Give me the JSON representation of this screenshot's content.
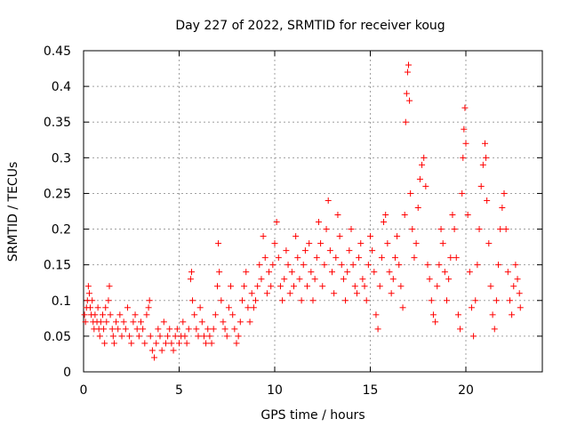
{
  "chart_data": {
    "type": "scatter",
    "title": "Day 227 of 2022, SRMTID for receiver koug",
    "xlabel": "GPS time / hours",
    "ylabel": "SRMTID / TECUs",
    "xlim": [
      0,
      24
    ],
    "ylim": [
      0,
      0.45
    ],
    "xticks": [
      0,
      5,
      10,
      15,
      20
    ],
    "yticks": [
      0,
      0.05,
      0.1,
      0.15,
      0.2,
      0.25,
      0.3,
      0.35,
      0.4,
      0.45
    ],
    "xtick_labels": [
      "0",
      "5",
      "10",
      "15",
      "20"
    ],
    "ytick_labels": [
      "0",
      "0.05",
      "0.1",
      "0.15",
      "0.2",
      "0.25",
      "0.3",
      "0.35",
      "0.4",
      "0.45"
    ],
    "grid": true,
    "marker": "+",
    "color": "#ff0000",
    "series": [
      {
        "name": "koug",
        "points": [
          [
            0.05,
            0.08
          ],
          [
            0.1,
            0.07
          ],
          [
            0.15,
            0.09
          ],
          [
            0.2,
            0.1
          ],
          [
            0.25,
            0.12
          ],
          [
            0.3,
            0.11
          ],
          [
            0.35,
            0.09
          ],
          [
            0.4,
            0.08
          ],
          [
            0.45,
            0.1
          ],
          [
            0.5,
            0.07
          ],
          [
            0.55,
            0.06
          ],
          [
            0.6,
            0.08
          ],
          [
            0.7,
            0.07
          ],
          [
            0.75,
            0.09
          ],
          [
            0.8,
            0.06
          ],
          [
            0.85,
            0.05
          ],
          [
            0.9,
            0.07
          ],
          [
            1.0,
            0.08
          ],
          [
            1.05,
            0.06
          ],
          [
            1.1,
            0.04
          ],
          [
            1.15,
            0.09
          ],
          [
            1.2,
            0.07
          ],
          [
            1.3,
            0.1
          ],
          [
            1.35,
            0.12
          ],
          [
            1.4,
            0.08
          ],
          [
            1.5,
            0.06
          ],
          [
            1.55,
            0.05
          ],
          [
            1.6,
            0.04
          ],
          [
            1.7,
            0.07
          ],
          [
            1.8,
            0.06
          ],
          [
            1.9,
            0.08
          ],
          [
            2.0,
            0.05
          ],
          [
            2.1,
            0.07
          ],
          [
            2.2,
            0.06
          ],
          [
            2.3,
            0.09
          ],
          [
            2.4,
            0.05
          ],
          [
            2.5,
            0.04
          ],
          [
            2.6,
            0.07
          ],
          [
            2.7,
            0.08
          ],
          [
            2.8,
            0.06
          ],
          [
            2.9,
            0.05
          ],
          [
            3.0,
            0.07
          ],
          [
            3.1,
            0.06
          ],
          [
            3.2,
            0.04
          ],
          [
            3.3,
            0.08
          ],
          [
            3.4,
            0.09
          ],
          [
            3.45,
            0.1
          ],
          [
            3.5,
            0.05
          ],
          [
            3.6,
            0.03
          ],
          [
            3.7,
            0.02
          ],
          [
            3.8,
            0.04
          ],
          [
            3.9,
            0.06
          ],
          [
            4.0,
            0.05
          ],
          [
            4.1,
            0.03
          ],
          [
            4.2,
            0.07
          ],
          [
            4.3,
            0.04
          ],
          [
            4.4,
            0.05
          ],
          [
            4.5,
            0.06
          ],
          [
            4.6,
            0.04
          ],
          [
            4.7,
            0.03
          ],
          [
            4.8,
            0.05
          ],
          [
            4.9,
            0.06
          ],
          [
            5.0,
            0.04
          ],
          [
            5.1,
            0.05
          ],
          [
            5.2,
            0.07
          ],
          [
            5.3,
            0.05
          ],
          [
            5.4,
            0.04
          ],
          [
            5.5,
            0.06
          ],
          [
            5.6,
            0.13
          ],
          [
            5.65,
            0.14
          ],
          [
            5.7,
            0.1
          ],
          [
            5.8,
            0.08
          ],
          [
            5.9,
            0.06
          ],
          [
            6.0,
            0.05
          ],
          [
            6.1,
            0.09
          ],
          [
            6.2,
            0.07
          ],
          [
            6.3,
            0.05
          ],
          [
            6.4,
            0.04
          ],
          [
            6.5,
            0.06
          ],
          [
            6.6,
            0.05
          ],
          [
            6.7,
            0.04
          ],
          [
            6.8,
            0.06
          ],
          [
            6.9,
            0.08
          ],
          [
            7.0,
            0.12
          ],
          [
            7.05,
            0.18
          ],
          [
            7.1,
            0.14
          ],
          [
            7.2,
            0.1
          ],
          [
            7.3,
            0.07
          ],
          [
            7.4,
            0.06
          ],
          [
            7.5,
            0.05
          ],
          [
            7.6,
            0.09
          ],
          [
            7.7,
            0.12
          ],
          [
            7.8,
            0.08
          ],
          [
            7.9,
            0.06
          ],
          [
            8.0,
            0.04
          ],
          [
            8.1,
            0.05
          ],
          [
            8.2,
            0.07
          ],
          [
            8.3,
            0.1
          ],
          [
            8.4,
            0.12
          ],
          [
            8.5,
            0.14
          ],
          [
            8.6,
            0.09
          ],
          [
            8.7,
            0.07
          ],
          [
            8.8,
            0.11
          ],
          [
            8.9,
            0.09
          ],
          [
            9.0,
            0.1
          ],
          [
            9.1,
            0.12
          ],
          [
            9.2,
            0.15
          ],
          [
            9.3,
            0.13
          ],
          [
            9.4,
            0.19
          ],
          [
            9.5,
            0.16
          ],
          [
            9.6,
            0.11
          ],
          [
            9.7,
            0.14
          ],
          [
            9.8,
            0.12
          ],
          [
            9.9,
            0.15
          ],
          [
            10.0,
            0.18
          ],
          [
            10.1,
            0.21
          ],
          [
            10.2,
            0.16
          ],
          [
            10.3,
            0.12
          ],
          [
            10.4,
            0.1
          ],
          [
            10.5,
            0.13
          ],
          [
            10.6,
            0.17
          ],
          [
            10.7,
            0.15
          ],
          [
            10.8,
            0.11
          ],
          [
            10.9,
            0.14
          ],
          [
            11.0,
            0.12
          ],
          [
            11.1,
            0.19
          ],
          [
            11.2,
            0.16
          ],
          [
            11.3,
            0.13
          ],
          [
            11.4,
            0.1
          ],
          [
            11.5,
            0.15
          ],
          [
            11.6,
            0.17
          ],
          [
            11.7,
            0.12
          ],
          [
            11.8,
            0.18
          ],
          [
            11.9,
            0.14
          ],
          [
            12.0,
            0.1
          ],
          [
            12.1,
            0.13
          ],
          [
            12.2,
            0.16
          ],
          [
            12.3,
            0.21
          ],
          [
            12.4,
            0.18
          ],
          [
            12.5,
            0.12
          ],
          [
            12.6,
            0.15
          ],
          [
            12.7,
            0.2
          ],
          [
            12.8,
            0.24
          ],
          [
            12.9,
            0.17
          ],
          [
            13.0,
            0.14
          ],
          [
            13.1,
            0.11
          ],
          [
            13.2,
            0.16
          ],
          [
            13.3,
            0.22
          ],
          [
            13.4,
            0.19
          ],
          [
            13.5,
            0.15
          ],
          [
            13.6,
            0.13
          ],
          [
            13.7,
            0.1
          ],
          [
            13.8,
            0.14
          ],
          [
            13.9,
            0.17
          ],
          [
            14.0,
            0.2
          ],
          [
            14.1,
            0.15
          ],
          [
            14.2,
            0.12
          ],
          [
            14.3,
            0.11
          ],
          [
            14.4,
            0.16
          ],
          [
            14.5,
            0.18
          ],
          [
            14.6,
            0.13
          ],
          [
            14.7,
            0.12
          ],
          [
            14.8,
            0.1
          ],
          [
            14.9,
            0.15
          ],
          [
            15.0,
            0.19
          ],
          [
            15.1,
            0.17
          ],
          [
            15.2,
            0.14
          ],
          [
            15.3,
            0.08
          ],
          [
            15.4,
            0.06
          ],
          [
            15.5,
            0.12
          ],
          [
            15.6,
            0.16
          ],
          [
            15.7,
            0.21
          ],
          [
            15.8,
            0.22
          ],
          [
            15.9,
            0.18
          ],
          [
            16.0,
            0.14
          ],
          [
            16.1,
            0.11
          ],
          [
            16.2,
            0.13
          ],
          [
            16.3,
            0.16
          ],
          [
            16.4,
            0.19
          ],
          [
            16.5,
            0.15
          ],
          [
            16.6,
            0.12
          ],
          [
            16.7,
            0.09
          ],
          [
            16.8,
            0.22
          ],
          [
            16.85,
            0.35
          ],
          [
            16.9,
            0.39
          ],
          [
            16.95,
            0.42
          ],
          [
            17.0,
            0.43
          ],
          [
            17.05,
            0.38
          ],
          [
            17.1,
            0.25
          ],
          [
            17.2,
            0.2
          ],
          [
            17.3,
            0.16
          ],
          [
            17.4,
            0.18
          ],
          [
            17.5,
            0.23
          ],
          [
            17.6,
            0.27
          ],
          [
            17.7,
            0.29
          ],
          [
            17.8,
            0.3
          ],
          [
            17.9,
            0.26
          ],
          [
            18.0,
            0.15
          ],
          [
            18.1,
            0.13
          ],
          [
            18.2,
            0.1
          ],
          [
            18.3,
            0.08
          ],
          [
            18.4,
            0.07
          ],
          [
            18.5,
            0.12
          ],
          [
            18.6,
            0.15
          ],
          [
            18.7,
            0.2
          ],
          [
            18.8,
            0.18
          ],
          [
            18.9,
            0.14
          ],
          [
            19.0,
            0.1
          ],
          [
            19.1,
            0.13
          ],
          [
            19.2,
            0.16
          ],
          [
            19.3,
            0.22
          ],
          [
            19.4,
            0.2
          ],
          [
            19.5,
            0.16
          ],
          [
            19.6,
            0.08
          ],
          [
            19.7,
            0.06
          ],
          [
            19.8,
            0.25
          ],
          [
            19.85,
            0.3
          ],
          [
            19.9,
            0.34
          ],
          [
            19.95,
            0.37
          ],
          [
            20.0,
            0.32
          ],
          [
            20.1,
            0.22
          ],
          [
            20.2,
            0.14
          ],
          [
            20.3,
            0.09
          ],
          [
            20.4,
            0.05
          ],
          [
            20.5,
            0.1
          ],
          [
            20.6,
            0.15
          ],
          [
            20.7,
            0.2
          ],
          [
            20.8,
            0.26
          ],
          [
            20.9,
            0.29
          ],
          [
            21.0,
            0.32
          ],
          [
            21.05,
            0.3
          ],
          [
            21.1,
            0.24
          ],
          [
            21.2,
            0.18
          ],
          [
            21.3,
            0.12
          ],
          [
            21.4,
            0.08
          ],
          [
            21.5,
            0.06
          ],
          [
            21.6,
            0.1
          ],
          [
            21.7,
            0.15
          ],
          [
            21.8,
            0.2
          ],
          [
            21.9,
            0.23
          ],
          [
            22.0,
            0.25
          ],
          [
            22.1,
            0.2
          ],
          [
            22.2,
            0.14
          ],
          [
            22.3,
            0.1
          ],
          [
            22.4,
            0.08
          ],
          [
            22.5,
            0.12
          ],
          [
            22.6,
            0.15
          ],
          [
            22.7,
            0.13
          ],
          [
            22.8,
            0.11
          ],
          [
            22.85,
            0.09
          ]
        ]
      }
    ]
  }
}
